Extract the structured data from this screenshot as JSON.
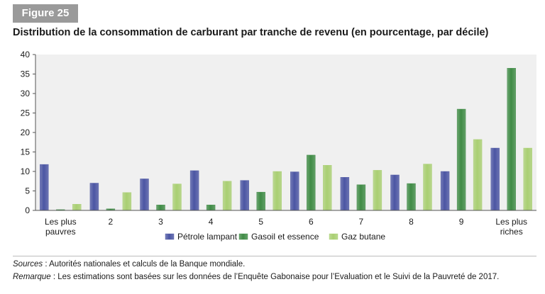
{
  "figure_label": "Figure 25",
  "chart_data": {
    "type": "bar",
    "title": "Distribution de la consommation de carburant par tranche de revenu (en pourcentage, par décile)",
    "categories": [
      [
        "Les plus",
        "pauvres"
      ],
      [
        "2"
      ],
      [
        "3"
      ],
      [
        "4"
      ],
      [
        "5"
      ],
      [
        "6"
      ],
      [
        "7"
      ],
      [
        "8"
      ],
      [
        "9"
      ],
      [
        "Les plus",
        "riches"
      ]
    ],
    "series": [
      {
        "name": "Pétrole lampant",
        "color": "#4b55a3",
        "values": [
          11.8,
          7.0,
          8.1,
          10.2,
          7.7,
          9.9,
          8.5,
          9.1,
          10.0,
          16.0
        ]
      },
      {
        "name": "Gasoil et essence",
        "color": "#3f8b45",
        "values": [
          0.2,
          0.4,
          1.4,
          1.4,
          4.7,
          14.2,
          6.6,
          6.9,
          26.0,
          36.5
        ]
      },
      {
        "name": "Gaz butane",
        "color": "#a9cf72",
        "values": [
          1.6,
          4.6,
          6.8,
          7.5,
          10.0,
          11.6,
          10.3,
          11.9,
          18.2,
          16.0
        ]
      }
    ],
    "ylim": [
      0,
      40
    ],
    "yticks": [
      0,
      5,
      10,
      15,
      20,
      25,
      30,
      35,
      40
    ],
    "legend_position": "bottom-center",
    "grid": false
  },
  "footer": {
    "sources_label": "Sources",
    "sources_text": " : Autorités nationales et calculs de la Banque mondiale.",
    "remarque_label": "Remarque",
    "remarque_text": " : Les estimations sont basées sur les données de l’Enquête Gabonaise pour l’Evaluation et le Suivi de la Pauvreté de 2017."
  }
}
